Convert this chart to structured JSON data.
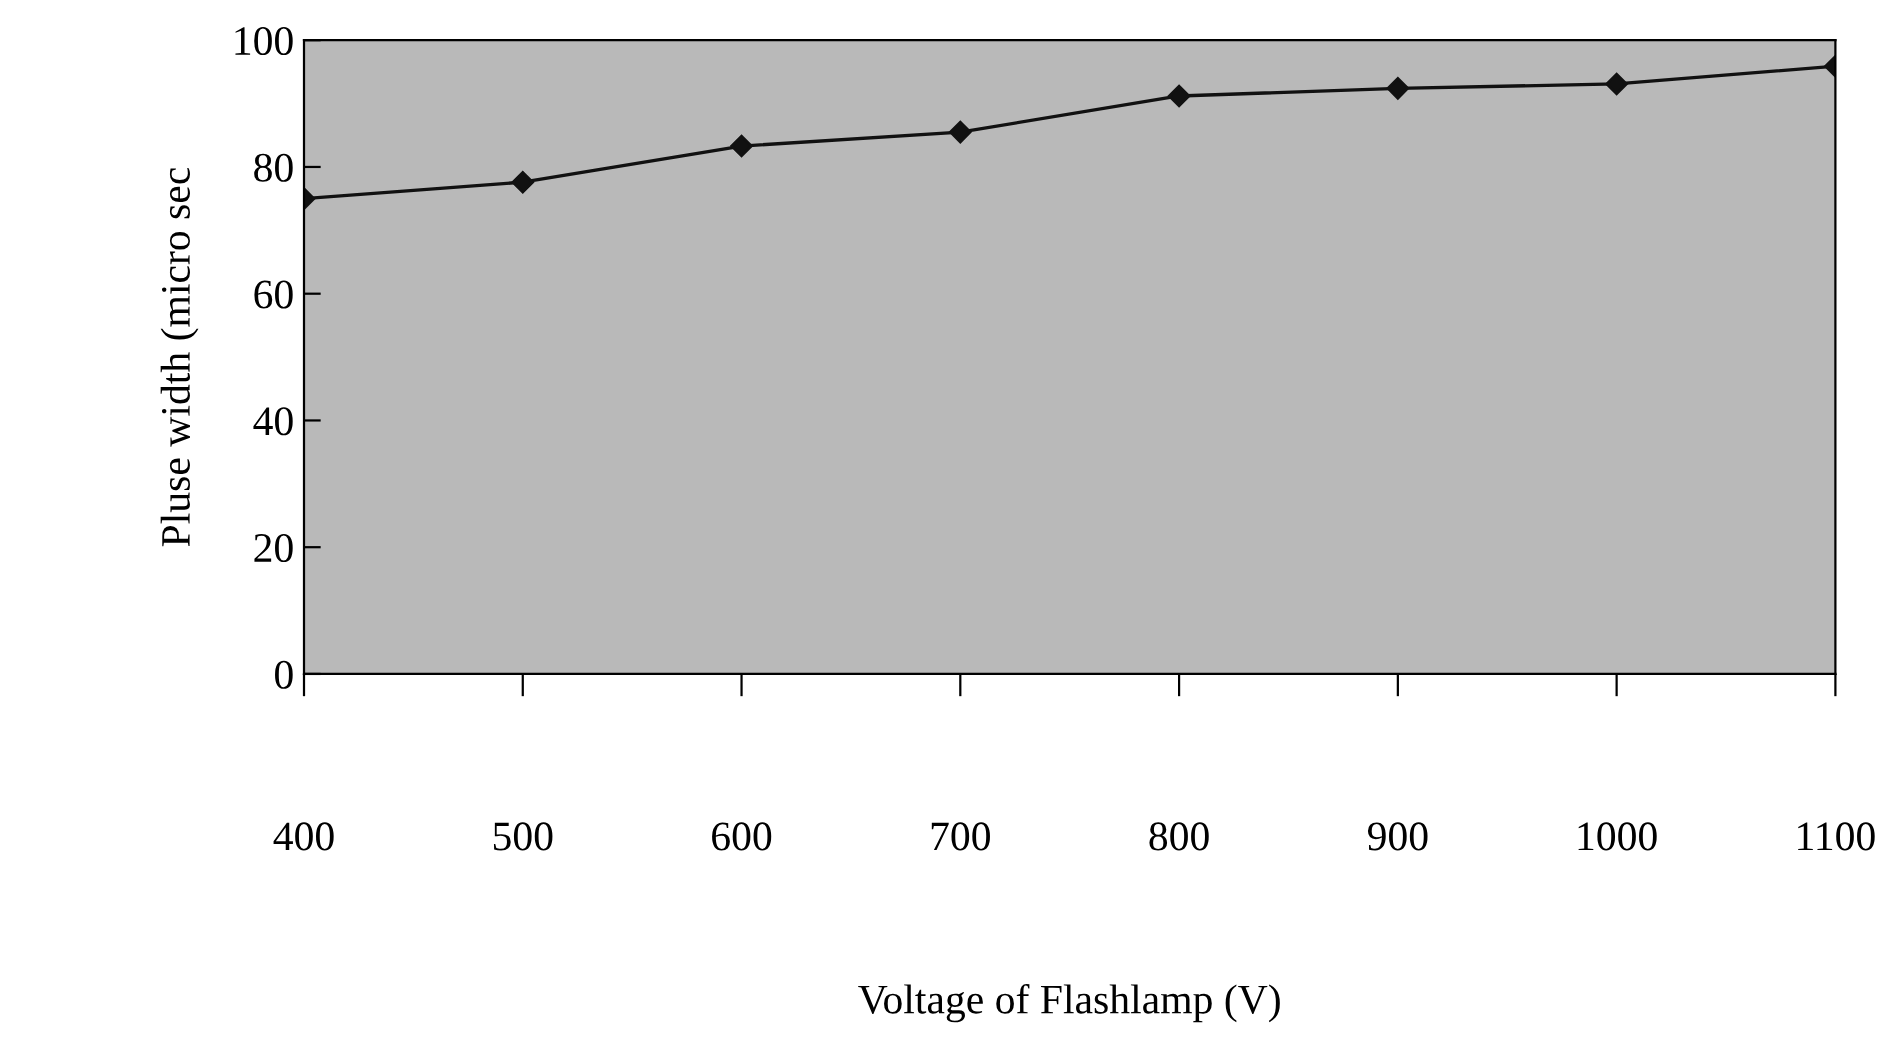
{
  "chart_data": {
    "type": "line",
    "xlabel": "Voltage of Flashlamp (V)",
    "ylabel": "Pluse width (micro sec",
    "x": [
      400,
      500,
      600,
      700,
      800,
      900,
      1000,
      1100
    ],
    "series": [
      {
        "color": "#111111",
        "values": [
          75,
          77.6,
          83.3,
          85.5,
          91.2,
          92.4,
          93.1,
          95.9
        ]
      }
    ],
    "xlim": [
      400,
      1100
    ],
    "xticks": [
      400,
      500,
      600,
      700,
      800,
      900,
      1000,
      1100
    ],
    "ylim": [
      0,
      100
    ],
    "yticks": [
      0,
      20,
      40,
      60,
      80,
      100
    ],
    "grid": false,
    "legend": false,
    "marker": "diamond",
    "line_style": "solid"
  }
}
